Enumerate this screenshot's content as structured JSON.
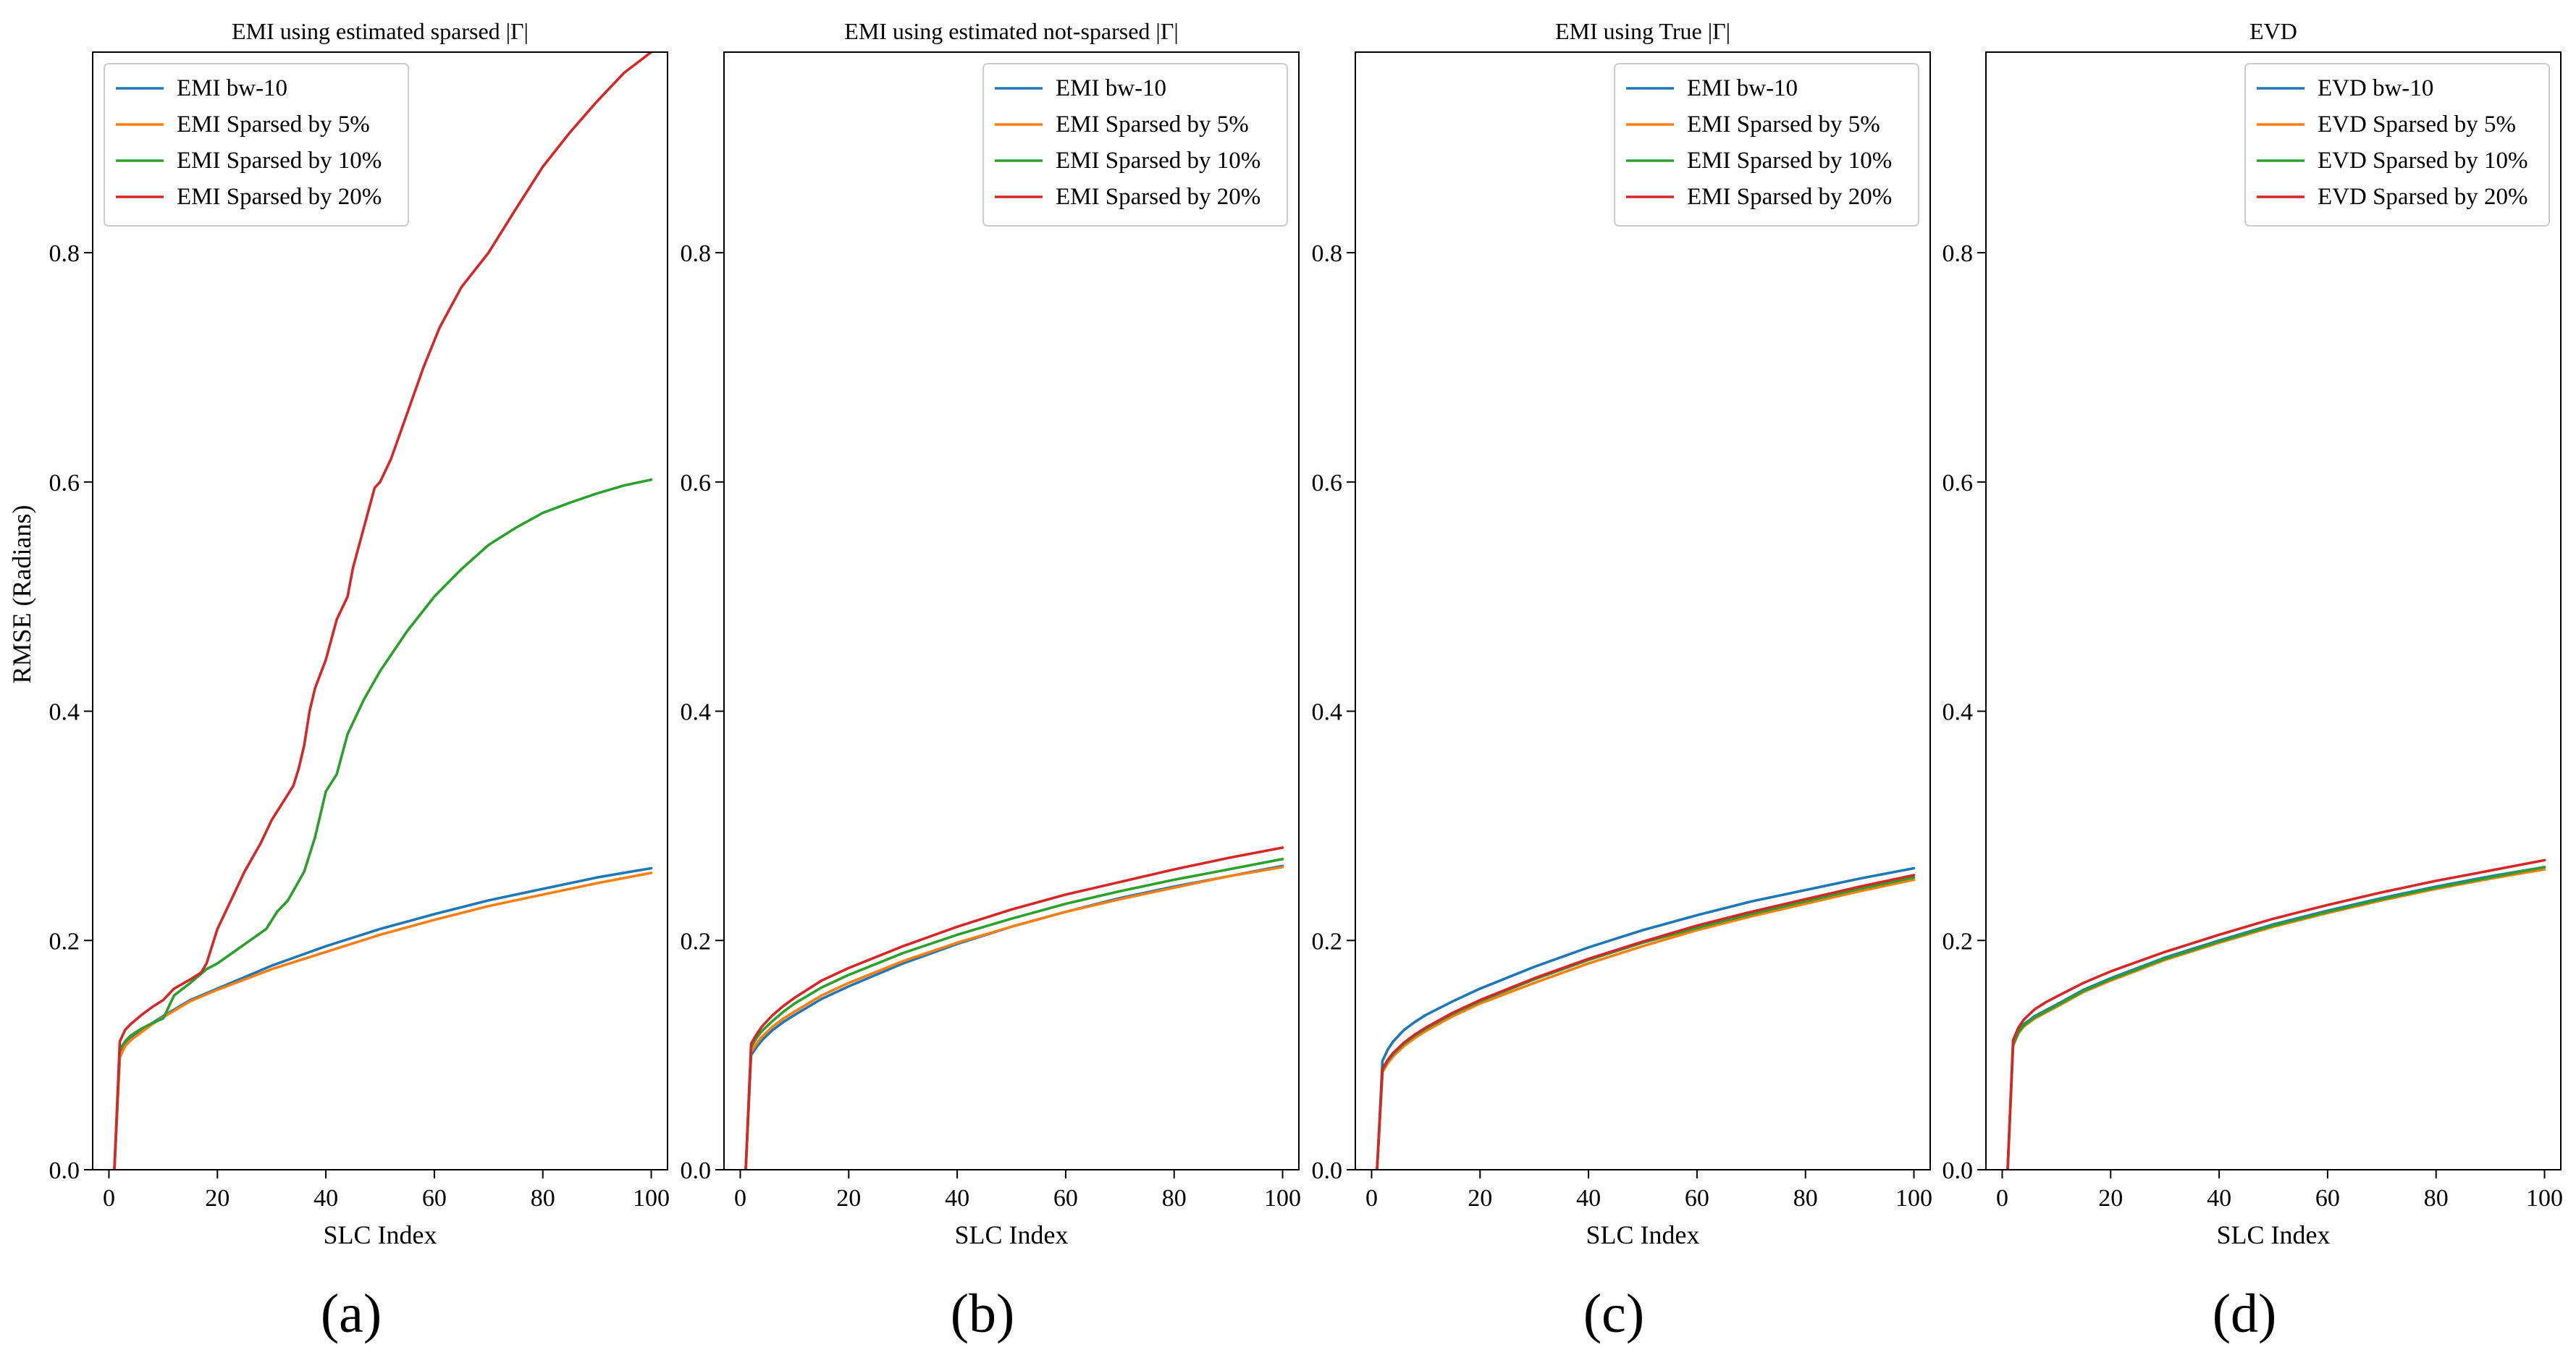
{
  "figure": {
    "ylabel": "RMSE (Radians)"
  },
  "chart_data": [
    {
      "type": "line",
      "title": "EMI using estimated sparsed |Γ|",
      "panel_label": "(a)",
      "xlabel": "SLC Index",
      "ylabel": "RMSE (Radians)",
      "xlim": [
        -3,
        103
      ],
      "ylim": [
        0,
        0.975
      ],
      "xticks": [
        "0",
        "20",
        "40",
        "60",
        "80",
        "100"
      ],
      "yticks": [
        "0.0",
        "0.2",
        "0.4",
        "0.6",
        "0.8"
      ],
      "legend": "top-left",
      "series": [
        {
          "name": "EMI bw-10",
          "color": "#1f77b4",
          "x": [
            1,
            2,
            3,
            4,
            6,
            8,
            10,
            15,
            20,
            30,
            40,
            50,
            60,
            70,
            80,
            90,
            100
          ],
          "y": [
            0,
            0.1,
            0.11,
            0.115,
            0.122,
            0.128,
            0.134,
            0.148,
            0.158,
            0.178,
            0.195,
            0.21,
            0.223,
            0.235,
            0.245,
            0.255,
            0.263
          ]
        },
        {
          "name": "EMI Sparsed by 5%",
          "color": "#ff7f0e",
          "x": [
            1,
            2,
            3,
            4,
            6,
            8,
            10,
            15,
            20,
            30,
            40,
            50,
            60,
            70,
            80,
            90,
            100
          ],
          "y": [
            0,
            0.098,
            0.108,
            0.113,
            0.12,
            0.127,
            0.133,
            0.147,
            0.157,
            0.175,
            0.19,
            0.205,
            0.218,
            0.23,
            0.24,
            0.25,
            0.259
          ]
        },
        {
          "name": "EMI Sparsed by 10%",
          "color": "#2ca02c",
          "x": [
            1,
            2,
            3,
            4,
            6,
            8,
            10,
            12,
            15,
            18,
            20,
            23,
            26,
            29,
            31,
            33,
            36,
            38,
            40,
            42,
            44,
            47,
            50,
            55,
            60,
            65,
            70,
            75,
            80,
            85,
            90,
            95,
            100
          ],
          "y": [
            0,
            0.105,
            0.112,
            0.117,
            0.123,
            0.128,
            0.132,
            0.152,
            0.163,
            0.175,
            0.18,
            0.19,
            0.2,
            0.21,
            0.225,
            0.235,
            0.26,
            0.29,
            0.33,
            0.345,
            0.38,
            0.41,
            0.435,
            0.47,
            0.5,
            0.524,
            0.545,
            0.56,
            0.573,
            0.582,
            0.59,
            0.597,
            0.602
          ]
        },
        {
          "name": "EMI Sparsed by 20%",
          "color": "#d62728",
          "x": [
            1,
            2,
            3,
            4,
            6,
            8,
            10,
            12,
            15,
            17,
            18,
            20,
            23,
            25,
            28,
            30,
            32,
            34,
            35,
            36,
            37,
            38,
            40,
            42,
            44,
            45,
            47,
            49,
            50,
            52,
            55,
            58,
            61,
            65,
            70,
            75,
            80,
            85,
            90,
            95,
            100
          ],
          "y": [
            0,
            0.112,
            0.122,
            0.127,
            0.135,
            0.142,
            0.148,
            0.158,
            0.166,
            0.172,
            0.18,
            0.21,
            0.24,
            0.26,
            0.285,
            0.305,
            0.32,
            0.335,
            0.35,
            0.37,
            0.4,
            0.42,
            0.445,
            0.48,
            0.5,
            0.525,
            0.56,
            0.595,
            0.6,
            0.62,
            0.66,
            0.7,
            0.735,
            0.77,
            0.8,
            0.838,
            0.875,
            0.905,
            0.932,
            0.957,
            0.975
          ]
        }
      ]
    },
    {
      "type": "line",
      "title": "EMI using estimated not-sparsed |Γ|",
      "panel_label": "(b)",
      "xlabel": "SLC Index",
      "ylabel": "",
      "xlim": [
        -3,
        103
      ],
      "ylim": [
        0,
        0.975
      ],
      "xticks": [
        "0",
        "20",
        "40",
        "60",
        "80",
        "100"
      ],
      "yticks": [
        "0.0",
        "0.2",
        "0.4",
        "0.6",
        "0.8"
      ],
      "legend": "top-right",
      "series": [
        {
          "name": "EMI bw-10",
          "color": "#1f77b4",
          "x": [
            1,
            2,
            3,
            4,
            6,
            8,
            10,
            15,
            20,
            30,
            40,
            50,
            60,
            70,
            80,
            90,
            100
          ],
          "y": [
            0,
            0.1,
            0.107,
            0.113,
            0.122,
            0.129,
            0.135,
            0.149,
            0.16,
            0.18,
            0.197,
            0.212,
            0.225,
            0.237,
            0.247,
            0.256,
            0.265
          ]
        },
        {
          "name": "EMI Sparsed by 5%",
          "color": "#ff7f0e",
          "x": [
            1,
            2,
            3,
            4,
            6,
            8,
            10,
            15,
            20,
            30,
            40,
            50,
            60,
            70,
            80,
            90,
            100
          ],
          "y": [
            0,
            0.103,
            0.11,
            0.116,
            0.125,
            0.132,
            0.138,
            0.152,
            0.163,
            0.182,
            0.198,
            0.212,
            0.225,
            0.236,
            0.246,
            0.256,
            0.264
          ]
        },
        {
          "name": "EMI Sparsed by 10%",
          "color": "#2ca02c",
          "x": [
            1,
            2,
            3,
            4,
            6,
            8,
            10,
            15,
            20,
            30,
            40,
            50,
            60,
            70,
            80,
            90,
            100
          ],
          "y": [
            0,
            0.107,
            0.115,
            0.121,
            0.13,
            0.138,
            0.145,
            0.159,
            0.17,
            0.189,
            0.205,
            0.219,
            0.232,
            0.243,
            0.253,
            0.262,
            0.271
          ]
        },
        {
          "name": "EMI Sparsed by 20%",
          "color": "#d62728",
          "x": [
            1,
            2,
            3,
            4,
            6,
            8,
            10,
            15,
            20,
            30,
            40,
            50,
            60,
            70,
            80,
            90,
            100
          ],
          "y": [
            0,
            0.11,
            0.118,
            0.125,
            0.135,
            0.143,
            0.15,
            0.165,
            0.176,
            0.195,
            0.212,
            0.227,
            0.24,
            0.251,
            0.262,
            0.272,
            0.281
          ]
        }
      ]
    },
    {
      "type": "line",
      "title": "EMI using True |Γ|",
      "panel_label": "(c)",
      "xlabel": "SLC Index",
      "ylabel": "",
      "xlim": [
        -3,
        103
      ],
      "ylim": [
        0,
        0.975
      ],
      "xticks": [
        "0",
        "20",
        "40",
        "60",
        "80",
        "100"
      ],
      "yticks": [
        "0.0",
        "0.2",
        "0.4",
        "0.6",
        "0.8"
      ],
      "legend": "top-right",
      "series": [
        {
          "name": "EMI bw-10",
          "color": "#1f77b4",
          "x": [
            1,
            2,
            3,
            4,
            6,
            8,
            10,
            15,
            20,
            30,
            40,
            50,
            60,
            70,
            80,
            90,
            100
          ],
          "y": [
            0,
            0.095,
            0.105,
            0.112,
            0.122,
            0.129,
            0.135,
            0.147,
            0.158,
            0.177,
            0.194,
            0.209,
            0.222,
            0.234,
            0.244,
            0.254,
            0.263
          ]
        },
        {
          "name": "EMI Sparsed by 5%",
          "color": "#ff7f0e",
          "x": [
            1,
            2,
            3,
            4,
            6,
            8,
            10,
            15,
            20,
            30,
            40,
            50,
            60,
            70,
            80,
            90,
            100
          ],
          "y": [
            0,
            0.085,
            0.093,
            0.099,
            0.108,
            0.115,
            0.121,
            0.134,
            0.145,
            0.163,
            0.18,
            0.195,
            0.209,
            0.221,
            0.232,
            0.243,
            0.253
          ]
        },
        {
          "name": "EMI Sparsed by 10%",
          "color": "#2ca02c",
          "x": [
            1,
            2,
            3,
            4,
            6,
            8,
            10,
            15,
            20,
            30,
            40,
            50,
            60,
            70,
            80,
            90,
            100
          ],
          "y": [
            0,
            0.087,
            0.095,
            0.101,
            0.11,
            0.117,
            0.123,
            0.136,
            0.147,
            0.166,
            0.183,
            0.198,
            0.211,
            0.223,
            0.234,
            0.245,
            0.255
          ]
        },
        {
          "name": "EMI Sparsed by 20%",
          "color": "#d62728",
          "x": [
            1,
            2,
            3,
            4,
            6,
            8,
            10,
            15,
            20,
            30,
            40,
            50,
            60,
            70,
            80,
            90,
            100
          ],
          "y": [
            0,
            0.088,
            0.096,
            0.102,
            0.111,
            0.118,
            0.124,
            0.137,
            0.148,
            0.167,
            0.184,
            0.199,
            0.213,
            0.225,
            0.236,
            0.247,
            0.257
          ]
        }
      ]
    },
    {
      "type": "line",
      "title": "EVD",
      "panel_label": "(d)",
      "xlabel": "SLC Index",
      "ylabel": "",
      "xlim": [
        -3,
        103
      ],
      "ylim": [
        0,
        0.975
      ],
      "xticks": [
        "0",
        "20",
        "40",
        "60",
        "80",
        "100"
      ],
      "yticks": [
        "0.0",
        "0.2",
        "0.4",
        "0.6",
        "0.8"
      ],
      "legend": "top-right",
      "series": [
        {
          "name": "EVD bw-10",
          "color": "#1f77b4",
          "x": [
            1,
            2,
            3,
            4,
            6,
            8,
            10,
            15,
            20,
            30,
            40,
            50,
            60,
            70,
            80,
            90,
            100
          ],
          "y": [
            0,
            0.11,
            0.121,
            0.127,
            0.134,
            0.139,
            0.144,
            0.157,
            0.167,
            0.185,
            0.2,
            0.214,
            0.226,
            0.237,
            0.247,
            0.256,
            0.264
          ]
        },
        {
          "name": "EVD Sparsed by 5%",
          "color": "#ff7f0e",
          "x": [
            1,
            2,
            3,
            4,
            6,
            8,
            10,
            15,
            20,
            30,
            40,
            50,
            60,
            70,
            80,
            90,
            100
          ],
          "y": [
            0,
            0.108,
            0.119,
            0.125,
            0.132,
            0.137,
            0.142,
            0.155,
            0.165,
            0.183,
            0.198,
            0.212,
            0.224,
            0.235,
            0.245,
            0.254,
            0.262
          ]
        },
        {
          "name": "EVD Sparsed by 10%",
          "color": "#2ca02c",
          "x": [
            1,
            2,
            3,
            4,
            6,
            8,
            10,
            15,
            20,
            30,
            40,
            50,
            60,
            70,
            80,
            90,
            100
          ],
          "y": [
            0,
            0.109,
            0.12,
            0.126,
            0.133,
            0.138,
            0.143,
            0.156,
            0.166,
            0.184,
            0.199,
            0.213,
            0.225,
            0.236,
            0.246,
            0.255,
            0.264
          ]
        },
        {
          "name": "EVD Sparsed by 20%",
          "color": "#d62728",
          "x": [
            1,
            2,
            3,
            4,
            6,
            8,
            10,
            15,
            20,
            30,
            40,
            50,
            60,
            70,
            80,
            90,
            100
          ],
          "y": [
            0,
            0.113,
            0.124,
            0.131,
            0.14,
            0.146,
            0.151,
            0.163,
            0.173,
            0.19,
            0.205,
            0.219,
            0.231,
            0.242,
            0.252,
            0.261,
            0.27
          ]
        }
      ]
    }
  ]
}
